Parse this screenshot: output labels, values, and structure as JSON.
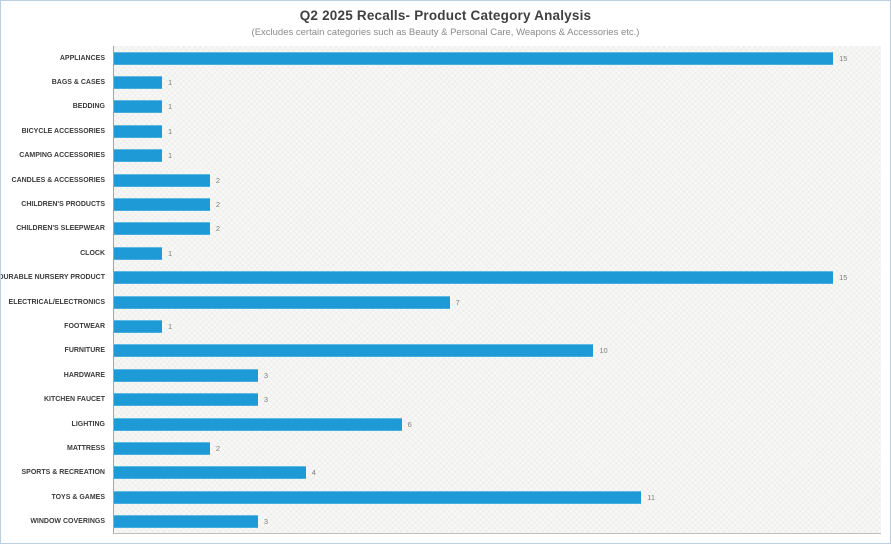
{
  "chart_data": {
    "type": "bar",
    "orientation": "horizontal",
    "title": "Q2 2025 Recalls- Product Category Analysis",
    "subtitle": "(Excludes certain categories such as Beauty & Personal Care, Weapons & Accessories etc.)",
    "categories": [
      "APPLIANCES",
      "BAGS & CASES",
      "BEDDING",
      "BICYCLE ACCESSORIES",
      "CAMPING ACCESSORIES",
      "CANDLES & ACCESSORIES",
      "CHILDREN'S PRODUCTS",
      "CHILDREN'S SLEEPWEAR",
      "CLOCK",
      "DURABLE NURSERY PRODUCT",
      "ELECTRICAL/ELECTRONICS",
      "FOOTWEAR",
      "FURNITURE",
      "HARDWARE",
      "KITCHEN FAUCET",
      "LIGHTING",
      "MATTRESS",
      "SPORTS & RECREATION",
      "TOYS & GAMES",
      "WINDOW COVERINGS"
    ],
    "values": [
      15,
      1,
      1,
      1,
      1,
      2,
      2,
      2,
      1,
      15,
      7,
      1,
      10,
      3,
      3,
      6,
      2,
      4,
      11,
      3
    ],
    "data_labels_shown": true,
    "xlim": [
      0,
      16
    ],
    "grid": false,
    "legend": "none",
    "colors": {
      "bar": "#1e9bd6",
      "category_label": "#3b3b3b",
      "value_label": "#7f7f7f",
      "title": "#404040",
      "subtitle": "#8a8a8a",
      "axis_line": "#a6a6a6",
      "plot_background": "#f7f7f6",
      "frame_border": "#bccfdf"
    }
  }
}
